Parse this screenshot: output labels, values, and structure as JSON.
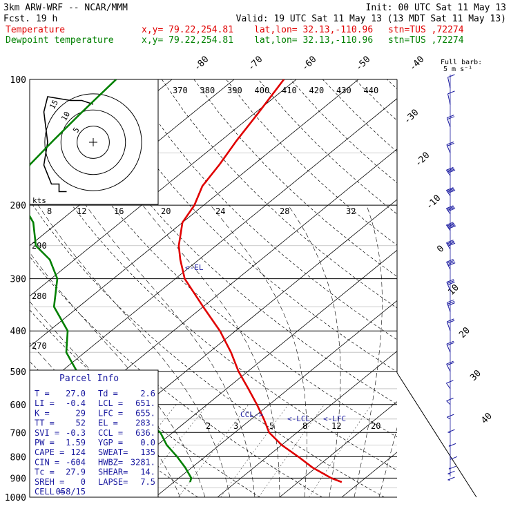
{
  "header": {
    "model": "3km ARW-WRF -- NCAR/MMM",
    "init": "Init: 00 UTC Sat 11 May 13",
    "fcst": "Fcst.   19 h",
    "valid": "Valid: 19 UTC Sat 11 May 13 (13 MDT Sat 11 May 13)"
  },
  "legend": [
    {
      "name": "Temperature",
      "xy": "x,y= 79.22,254.81",
      "latlon": "lat,lon= 32.13,-110.96",
      "stn": "stn=TUS ,72274",
      "color": "#e00000"
    },
    {
      "name": "Dewpoint temperature",
      "xy": "x,y= 79.22,254.81",
      "latlon": "lat,lon= 32.13,-110.96",
      "stn": "stn=TUS ,72274",
      "color": "#008000"
    }
  ],
  "barb_key": {
    "title": "Full barb:",
    "value": "5 m s⁻¹"
  },
  "hodograph": {
    "units": "kts",
    "ring_labels": [
      "5",
      "10",
      "15"
    ]
  },
  "pressure_labels": [
    "100",
    "200",
    "300",
    "400",
    "500",
    "600",
    "700",
    "800",
    "900",
    "1000"
  ],
  "top_isotherm_labels": [
    "-80",
    "-70",
    "-60",
    "-50",
    "-40"
  ],
  "right_isotherm_labels": [
    "-30",
    "-20",
    "-10",
    "0",
    "10",
    "20",
    "30",
    "40"
  ],
  "theta_e_labels": [
    "370",
    "380",
    "390",
    "400",
    "410",
    "420",
    "430",
    "440"
  ],
  "mixing_ratio_labels_upper": [
    "8",
    "12",
    "16",
    "20",
    "24",
    "28",
    "32"
  ],
  "mixing_ratio_labels_lower": [
    "2",
    "3",
    "5",
    "8",
    "12",
    "20"
  ],
  "theta_left_labels": [
    "290",
    "280",
    "270"
  ],
  "annotations": {
    "el": "<-EL",
    "ccl": "CCL->",
    "lcl": "<-LCL",
    "lfc": "<-LFC"
  },
  "parcel_info": {
    "title": "Parcel Info",
    "rows": [
      [
        "T  =",
        "27.0",
        "Td =",
        "2.6"
      ],
      [
        "LI =",
        "-0.4",
        "LCL =",
        "651."
      ],
      [
        "K  =",
        "29",
        "LFC =",
        "655."
      ],
      [
        "TT =",
        "52",
        "EL =",
        "283."
      ],
      [
        "SVI =",
        "-0.3",
        "CCL =",
        "636."
      ],
      [
        "PW =",
        "1.59",
        "YGP =",
        "0.0"
      ],
      [
        "CAPE =",
        "124",
        "SWEAT=",
        "135"
      ],
      [
        "CIN =",
        "-604",
        "HWBZ=",
        "3281."
      ],
      [
        "Tc =",
        "27.9",
        "SHEAR=",
        "14."
      ],
      [
        "SREH =",
        "0",
        "LAPSE=",
        "7.5"
      ],
      [
        "CELL =",
        "058/15",
        "",
        ""
      ]
    ]
  },
  "chart_data": {
    "type": "line",
    "title": "",
    "xlabel": "",
    "ylabel": "",
    "y_axis": "pressure (hPa), log scale",
    "ylim": [
      1000,
      100
    ],
    "series": [
      {
        "name": "Temperature",
        "color": "#e00000",
        "pressure": [
          920,
          900,
          850,
          800,
          750,
          700,
          650,
          600,
          550,
          500,
          450,
          400,
          350,
          300,
          270,
          250,
          220,
          200,
          180,
          160,
          140,
          120,
          100
        ],
        "temperature": [
          27.0,
          24.5,
          19.5,
          15.0,
          10.0,
          5.5,
          2.0,
          -2.0,
          -6.5,
          -11.5,
          -16.5,
          -22.5,
          -30.0,
          -38.5,
          -43.0,
          -46.0,
          -50.0,
          -51.5,
          -54.0,
          -55.5,
          -57.5,
          -59.5,
          -62.0
        ]
      },
      {
        "name": "Dewpoint temperature",
        "color": "#008000",
        "pressure": [
          920,
          900,
          850,
          800,
          750,
          700,
          650,
          600,
          550,
          500,
          450,
          400,
          350,
          300,
          270,
          250,
          220,
          200,
          180,
          160,
          140,
          120,
          100
        ],
        "temperature": [
          2.6,
          2.0,
          -1.0,
          -4.5,
          -8.5,
          -12.0,
          -17.5,
          -23.5,
          -31.0,
          -37.5,
          -43.0,
          -47.0,
          -54.0,
          -59.0,
          -64.0,
          -69.0,
          -74.0,
          -79.0,
          -83.0,
          -86.0,
          -87.0,
          -88.0,
          -89.0
        ]
      }
    ],
    "wind_barbs_ms": [
      {
        "p": 105,
        "spd": 5,
        "dir": 300
      },
      {
        "p": 115,
        "spd": 7,
        "dir": 300
      },
      {
        "p": 130,
        "spd": 10,
        "dir": 290
      },
      {
        "p": 150,
        "spd": 12,
        "dir": 285
      },
      {
        "p": 170,
        "spd": 20,
        "dir": 270
      },
      {
        "p": 190,
        "spd": 20,
        "dir": 270
      },
      {
        "p": 210,
        "spd": 22,
        "dir": 270
      },
      {
        "p": 230,
        "spd": 25,
        "dir": 270
      },
      {
        "p": 255,
        "spd": 22,
        "dir": 275
      },
      {
        "p": 285,
        "spd": 20,
        "dir": 280
      },
      {
        "p": 320,
        "spd": 17,
        "dir": 285
      },
      {
        "p": 360,
        "spd": 15,
        "dir": 290
      },
      {
        "p": 400,
        "spd": 12,
        "dir": 290
      },
      {
        "p": 450,
        "spd": 10,
        "dir": 285
      },
      {
        "p": 500,
        "spd": 10,
        "dir": 280
      },
      {
        "p": 550,
        "spd": 7,
        "dir": 270
      },
      {
        "p": 600,
        "spd": 5,
        "dir": 260
      },
      {
        "p": 650,
        "spd": 5,
        "dir": 250
      },
      {
        "p": 700,
        "spd": 5,
        "dir": 240
      },
      {
        "p": 750,
        "spd": 5,
        "dir": 230
      },
      {
        "p": 800,
        "spd": 5,
        "dir": 220
      },
      {
        "p": 850,
        "spd": 7,
        "dir": 230
      },
      {
        "p": 880,
        "spd": 7,
        "dir": 240
      },
      {
        "p": 910,
        "spd": 7,
        "dir": 240
      }
    ],
    "hodograph_trace_kts": [
      {
        "u": 0,
        "v": 10
      },
      {
        "u": -3,
        "v": 11
      },
      {
        "u": -6,
        "v": 11
      },
      {
        "u": -12,
        "v": 12
      },
      {
        "u": -13,
        "v": 8
      },
      {
        "u": -12,
        "v": 0
      },
      {
        "u": -13,
        "v": -6
      },
      {
        "u": -11,
        "v": -11
      },
      {
        "u": -9,
        "v": -11
      },
      {
        "u": -9,
        "v": -13
      },
      {
        "u": -7,
        "v": -13
      }
    ]
  }
}
